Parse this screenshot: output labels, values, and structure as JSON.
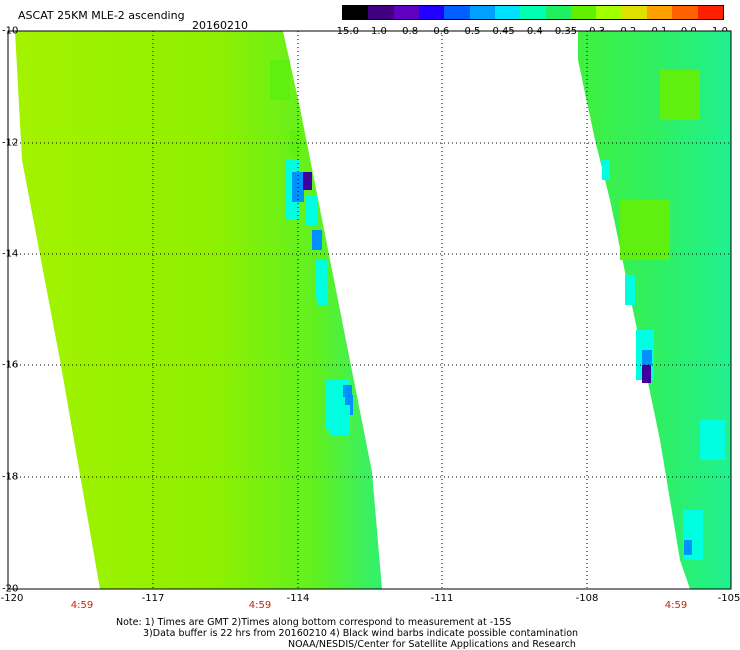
{
  "header": {
    "title": "ASCAT 25KM MLE-2 ascending",
    "date": "20160210"
  },
  "colorbar": {
    "labels": [
      "-15.0",
      "-1.0",
      "-0.8",
      "-0.6",
      "-0.5",
      "-0.45",
      "-0.4",
      "-0.35",
      "-0.3",
      "-0.2",
      "-0.1",
      "0.0",
      "1.0"
    ],
    "colors": [
      "#000000",
      "#400080",
      "#6000c0",
      "#2000ff",
      "#0060ff",
      "#00a0ff",
      "#00e0ff",
      "#00ffb0",
      "#20f060",
      "#60f000",
      "#a0ff00",
      "#e0e000",
      "#ffa000",
      "#ff6000",
      "#ff2000"
    ]
  },
  "map": {
    "x_ticks": [
      "-120",
      "-117",
      "-114",
      "-111",
      "-108",
      "-105"
    ],
    "y_ticks": [
      "-10",
      "-12",
      "-14",
      "-16",
      "-18",
      "-20"
    ],
    "times": [
      "4:59",
      "4:59",
      "4:59"
    ],
    "colors": {
      "base": "#9cf000",
      "green": "#5ff010",
      "cyan": "#00ffe0",
      "blue": "#0090ff",
      "purple": "#4000a0",
      "time_text": "#cc2200"
    }
  },
  "notes": {
    "line1": "Note: 1) Times are GMT 2)Times along bottom correspond to measurement at -15S",
    "line2": "3)Data buffer is 22 hrs from 20160210 4) Black wind barbs indicate possible contamination",
    "line3": "NOAA/NESDIS/Center for Satellite Applications and Research"
  }
}
